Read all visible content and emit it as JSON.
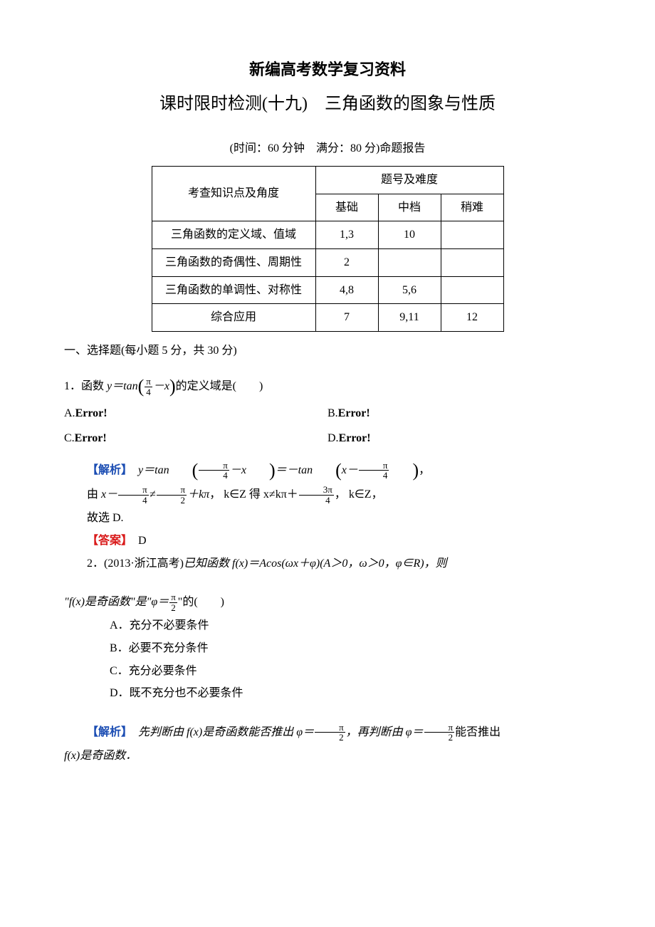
{
  "title_main": "新编高考数学复习资料",
  "title_sub": "课时限时检测(十九)　三角函数的图象与性质",
  "meta": "(时间：60 分钟　满分：80 分)命题报告",
  "table": {
    "header_topic": "考查知识点及角度",
    "header_group": "题号及难度",
    "cols": [
      "基础",
      "中档",
      "稍难"
    ],
    "rows": [
      {
        "topic": "三角函数的定义域、值域",
        "cells": [
          "1,3",
          "10",
          ""
        ]
      },
      {
        "topic": "三角函数的奇偶性、周期性",
        "cells": [
          "2",
          "",
          ""
        ]
      },
      {
        "topic": "三角函数的单调性、对称性",
        "cells": [
          "4,8",
          "5,6",
          ""
        ]
      },
      {
        "topic": "综合应用",
        "cells": [
          "7",
          "9,11",
          "12"
        ]
      }
    ]
  },
  "section1": "一、选择题(每小题 5 分，共 30 分)",
  "q1": {
    "num": "1．",
    "text_a": "函数 ",
    "text_b": "的定义域是(　　)",
    "opt_a": "A.",
    "opt_b": "B.",
    "opt_c": "C.",
    "opt_d": "D.",
    "error": "Error!"
  },
  "analysis_label": "【解析】",
  "answer_label": "【答案】",
  "q1_ans_choice": "D",
  "q1_a1_a": "，",
  "q1_a2_a": "由 ",
  "q1_a2_b": "， k∈Z 得 x≠kπ＋",
  "q1_a2_c": "， k∈Z，",
  "q1_a3": "故选 D.",
  "q2": {
    "num": "2．",
    "src": "(2013·浙江高考)",
    "text_a": "已知函数 f(x)＝Acos(ωx＋φ)(A＞0，ω＞0，φ∈R)，则",
    "text_b": "\"f(x)是奇函数\"是\"φ＝",
    "text_c": "\"的(　　)",
    "opts": {
      "a": "A．充分不必要条件",
      "b": "B．必要不充分条件",
      "c": "C．充分必要条件",
      "d": "D．既不充分也不必要条件"
    },
    "a1_a": "先判断由 f(x)是奇函数能否推出 φ＝",
    "a1_b": "，再判断由 φ＝",
    "a1_c": "能否推出",
    "a2": "f(x)是奇函数．"
  },
  "frac": {
    "pi": "π",
    "two": "2",
    "four": "4",
    "three_pi": "3π"
  },
  "sym": {
    "y_eq_tan": "y＝tan",
    "minus_tan": "＝－tan",
    "x": "x",
    "minus": "－",
    "neq": "≠",
    "plus_kpi": "＋kπ"
  }
}
